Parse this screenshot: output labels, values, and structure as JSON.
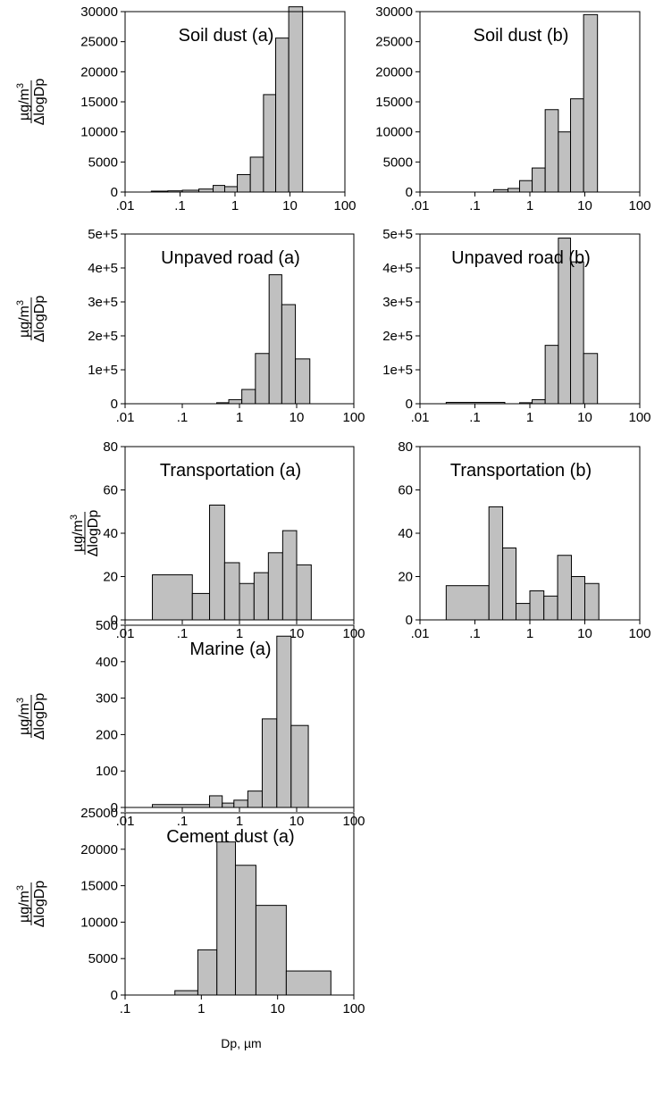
{
  "figure": {
    "xlabel": "Dp, µm",
    "ylabel": {
      "numerator_prefix": "µg/m",
      "numerator_sup": "3",
      "denominator": "ΔlogDp"
    }
  },
  "chart_data": [
    {
      "type": "bar",
      "title": "Soil dust (a)",
      "xscale": "log",
      "xlim": [
        0.01,
        100
      ],
      "xticklabels": [
        ".01",
        ".1",
        "1",
        "10",
        "100"
      ],
      "ylim": [
        0,
        30000
      ],
      "yticks": [
        0,
        5000,
        10000,
        15000,
        20000,
        25000,
        30000
      ],
      "yticklabels": [
        "0",
        "5000",
        "10000",
        "15000",
        "20000",
        "25000",
        "30000"
      ],
      "bins": [
        {
          "x0": 0.03,
          "x1": 0.06,
          "y": 150
        },
        {
          "x0": 0.06,
          "x1": 0.11,
          "y": 200
        },
        {
          "x0": 0.11,
          "x1": 0.22,
          "y": 300
        },
        {
          "x0": 0.22,
          "x1": 0.4,
          "y": 500
        },
        {
          "x0": 0.4,
          "x1": 0.65,
          "y": 1100
        },
        {
          "x0": 0.65,
          "x1": 1.1,
          "y": 900
        },
        {
          "x0": 1.1,
          "x1": 1.9,
          "y": 2900
        },
        {
          "x0": 1.9,
          "x1": 3.3,
          "y": 5800
        },
        {
          "x0": 3.3,
          "x1": 5.5,
          "y": 16200
        },
        {
          "x0": 5.5,
          "x1": 9.5,
          "y": 25600
        },
        {
          "x0": 9.5,
          "x1": 17,
          "y": 30800
        }
      ]
    },
    {
      "type": "bar",
      "title": "Soil dust (b)",
      "xscale": "log",
      "xlim": [
        0.01,
        100
      ],
      "xticklabels": [
        ".01",
        ".1",
        "1",
        "10",
        "100"
      ],
      "ylim": [
        0,
        30000
      ],
      "yticks": [
        0,
        5000,
        10000,
        15000,
        20000,
        25000,
        30000
      ],
      "yticklabels": [
        "0",
        "5000",
        "10000",
        "15000",
        "20000",
        "25000",
        "30000"
      ],
      "bins": [
        {
          "x0": 0.22,
          "x1": 0.4,
          "y": 400
        },
        {
          "x0": 0.4,
          "x1": 0.65,
          "y": 600
        },
        {
          "x0": 0.65,
          "x1": 1.1,
          "y": 1900
        },
        {
          "x0": 1.1,
          "x1": 1.9,
          "y": 4000
        },
        {
          "x0": 1.9,
          "x1": 3.3,
          "y": 13700
        },
        {
          "x0": 3.3,
          "x1": 5.5,
          "y": 10000
        },
        {
          "x0": 5.5,
          "x1": 9.5,
          "y": 15500
        },
        {
          "x0": 9.5,
          "x1": 17,
          "y": 29500
        }
      ]
    },
    {
      "type": "bar",
      "title": "Unpaved road (a)",
      "xscale": "log",
      "xlim": [
        0.01,
        100
      ],
      "xticklabels": [
        ".01",
        ".1",
        "1",
        "10",
        "100"
      ],
      "ylim": [
        0,
        500000
      ],
      "yticks": [
        0,
        100000,
        200000,
        300000,
        400000,
        500000
      ],
      "yticklabels": [
        "0",
        "1e+5",
        "2e+5",
        "3e+5",
        "4e+5",
        "5e+5"
      ],
      "bins": [
        {
          "x0": 0.4,
          "x1": 0.65,
          "y": 3000
        },
        {
          "x0": 0.65,
          "x1": 1.1,
          "y": 12000
        },
        {
          "x0": 1.1,
          "x1": 1.9,
          "y": 42000
        },
        {
          "x0": 1.9,
          "x1": 3.3,
          "y": 148000
        },
        {
          "x0": 3.3,
          "x1": 5.5,
          "y": 380000
        },
        {
          "x0": 5.5,
          "x1": 9.5,
          "y": 292000
        },
        {
          "x0": 9.5,
          "x1": 17,
          "y": 132000
        }
      ]
    },
    {
      "type": "bar",
      "title": "Unpaved road (b)",
      "xscale": "log",
      "xlim": [
        0.01,
        100
      ],
      "xticklabels": [
        ".01",
        ".1",
        "1",
        "10",
        "100"
      ],
      "ylim": [
        0,
        500000
      ],
      "yticks": [
        0,
        100000,
        200000,
        300000,
        400000,
        500000
      ],
      "yticklabels": [
        "0",
        "1e+5",
        "2e+5",
        "3e+5",
        "4e+5",
        "5e+5"
      ],
      "bins": [
        {
          "x0": 0.03,
          "x1": 0.35,
          "y": 4000
        },
        {
          "x0": 0.65,
          "x1": 1.1,
          "y": 3000
        },
        {
          "x0": 1.1,
          "x1": 1.9,
          "y": 12000
        },
        {
          "x0": 1.9,
          "x1": 3.3,
          "y": 172000
        },
        {
          "x0": 3.3,
          "x1": 5.5,
          "y": 488000
        },
        {
          "x0": 5.5,
          "x1": 9.5,
          "y": 418000
        },
        {
          "x0": 9.5,
          "x1": 17,
          "y": 148000
        }
      ]
    },
    {
      "type": "bar",
      "title": "Transportation (a)",
      "xscale": "log",
      "xlim": [
        0.01,
        100
      ],
      "xticklabels": [
        ".01",
        ".1",
        "1",
        "10",
        "100"
      ],
      "ylim": [
        0,
        80
      ],
      "yticks": [
        0,
        20,
        40,
        60,
        80
      ],
      "yticklabels": [
        "0",
        "20",
        "40",
        "60",
        "80"
      ],
      "bins": [
        {
          "x0": 0.03,
          "x1": 0.15,
          "y": 20.8
        },
        {
          "x0": 0.15,
          "x1": 0.3,
          "y": 12.2
        },
        {
          "x0": 0.3,
          "x1": 0.55,
          "y": 53
        },
        {
          "x0": 0.55,
          "x1": 1.0,
          "y": 26.4
        },
        {
          "x0": 1.0,
          "x1": 1.8,
          "y": 16.8
        },
        {
          "x0": 1.8,
          "x1": 3.2,
          "y": 21.8
        },
        {
          "x0": 3.2,
          "x1": 5.7,
          "y": 31
        },
        {
          "x0": 5.7,
          "x1": 10,
          "y": 41.2
        },
        {
          "x0": 10,
          "x1": 18,
          "y": 25.4
        }
      ]
    },
    {
      "type": "bar",
      "title": "Transportation (b)",
      "xscale": "log",
      "xlim": [
        0.01,
        100
      ],
      "xticklabels": [
        ".01",
        ".1",
        "1",
        "10",
        "100"
      ],
      "ylim": [
        0,
        80
      ],
      "yticks": [
        0,
        20,
        40,
        60,
        80
      ],
      "yticklabels": [
        "0",
        "20",
        "40",
        "60",
        "80"
      ],
      "bins": [
        {
          "x0": 0.03,
          "x1": 0.18,
          "y": 15.8
        },
        {
          "x0": 0.18,
          "x1": 0.32,
          "y": 52.2
        },
        {
          "x0": 0.32,
          "x1": 0.56,
          "y": 33.2
        },
        {
          "x0": 0.56,
          "x1": 1.0,
          "y": 7.6
        },
        {
          "x0": 1.0,
          "x1": 1.8,
          "y": 13.4
        },
        {
          "x0": 1.8,
          "x1": 3.2,
          "y": 11
        },
        {
          "x0": 3.2,
          "x1": 5.7,
          "y": 29.8
        },
        {
          "x0": 5.7,
          "x1": 10,
          "y": 20
        },
        {
          "x0": 10,
          "x1": 18,
          "y": 16.8
        }
      ]
    },
    {
      "type": "bar",
      "title": "Marine (a)",
      "xscale": "log",
      "xlim": [
        0.01,
        100
      ],
      "xticklabels": [
        ".01",
        ".1",
        "1",
        "10",
        "100"
      ],
      "ylim": [
        0,
        500
      ],
      "yticks": [
        0,
        100,
        200,
        300,
        400,
        500
      ],
      "yticklabels": [
        "0",
        "100",
        "200",
        "300",
        "400",
        "500"
      ],
      "bins": [
        {
          "x0": 0.03,
          "x1": 0.3,
          "y": 8
        },
        {
          "x0": 0.3,
          "x1": 0.5,
          "y": 32
        },
        {
          "x0": 0.5,
          "x1": 0.8,
          "y": 12
        },
        {
          "x0": 0.8,
          "x1": 1.4,
          "y": 20
        },
        {
          "x0": 1.4,
          "x1": 2.5,
          "y": 45
        },
        {
          "x0": 2.5,
          "x1": 4.5,
          "y": 243
        },
        {
          "x0": 4.5,
          "x1": 8,
          "y": 470
        },
        {
          "x0": 8,
          "x1": 16,
          "y": 225
        }
      ]
    },
    {
      "type": "bar",
      "title": "Cement dust (a)",
      "xscale": "log",
      "xlim": [
        0.1,
        100
      ],
      "xticklabels": [
        ".1",
        "1",
        "10",
        "100"
      ],
      "ylim": [
        0,
        25000
      ],
      "yticks": [
        0,
        5000,
        10000,
        15000,
        20000,
        25000
      ],
      "yticklabels": [
        "0",
        "5000",
        "10000",
        "15000",
        "20000",
        "25000"
      ],
      "bins": [
        {
          "x0": 0.45,
          "x1": 0.9,
          "y": 600
        },
        {
          "x0": 0.9,
          "x1": 1.6,
          "y": 6200
        },
        {
          "x0": 1.6,
          "x1": 2.8,
          "y": 21000
        },
        {
          "x0": 2.8,
          "x1": 5.2,
          "y": 17800
        },
        {
          "x0": 5.2,
          "x1": 13,
          "y": 12300
        },
        {
          "x0": 13,
          "x1": 50,
          "y": 3300
        }
      ]
    }
  ]
}
